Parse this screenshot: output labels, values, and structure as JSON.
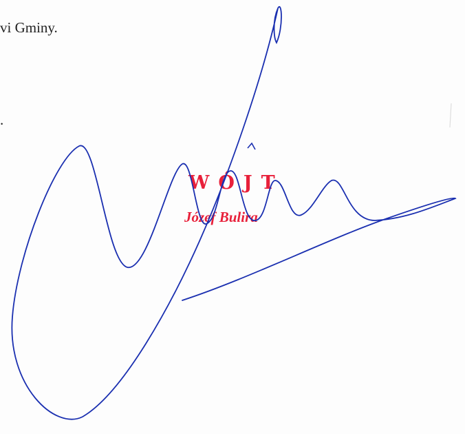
{
  "document": {
    "line_fragment": "vi Gminy.",
    "dot_fragment": ".",
    "stamp": {
      "title": "WÓJT",
      "name": "Józef Bulira"
    }
  }
}
